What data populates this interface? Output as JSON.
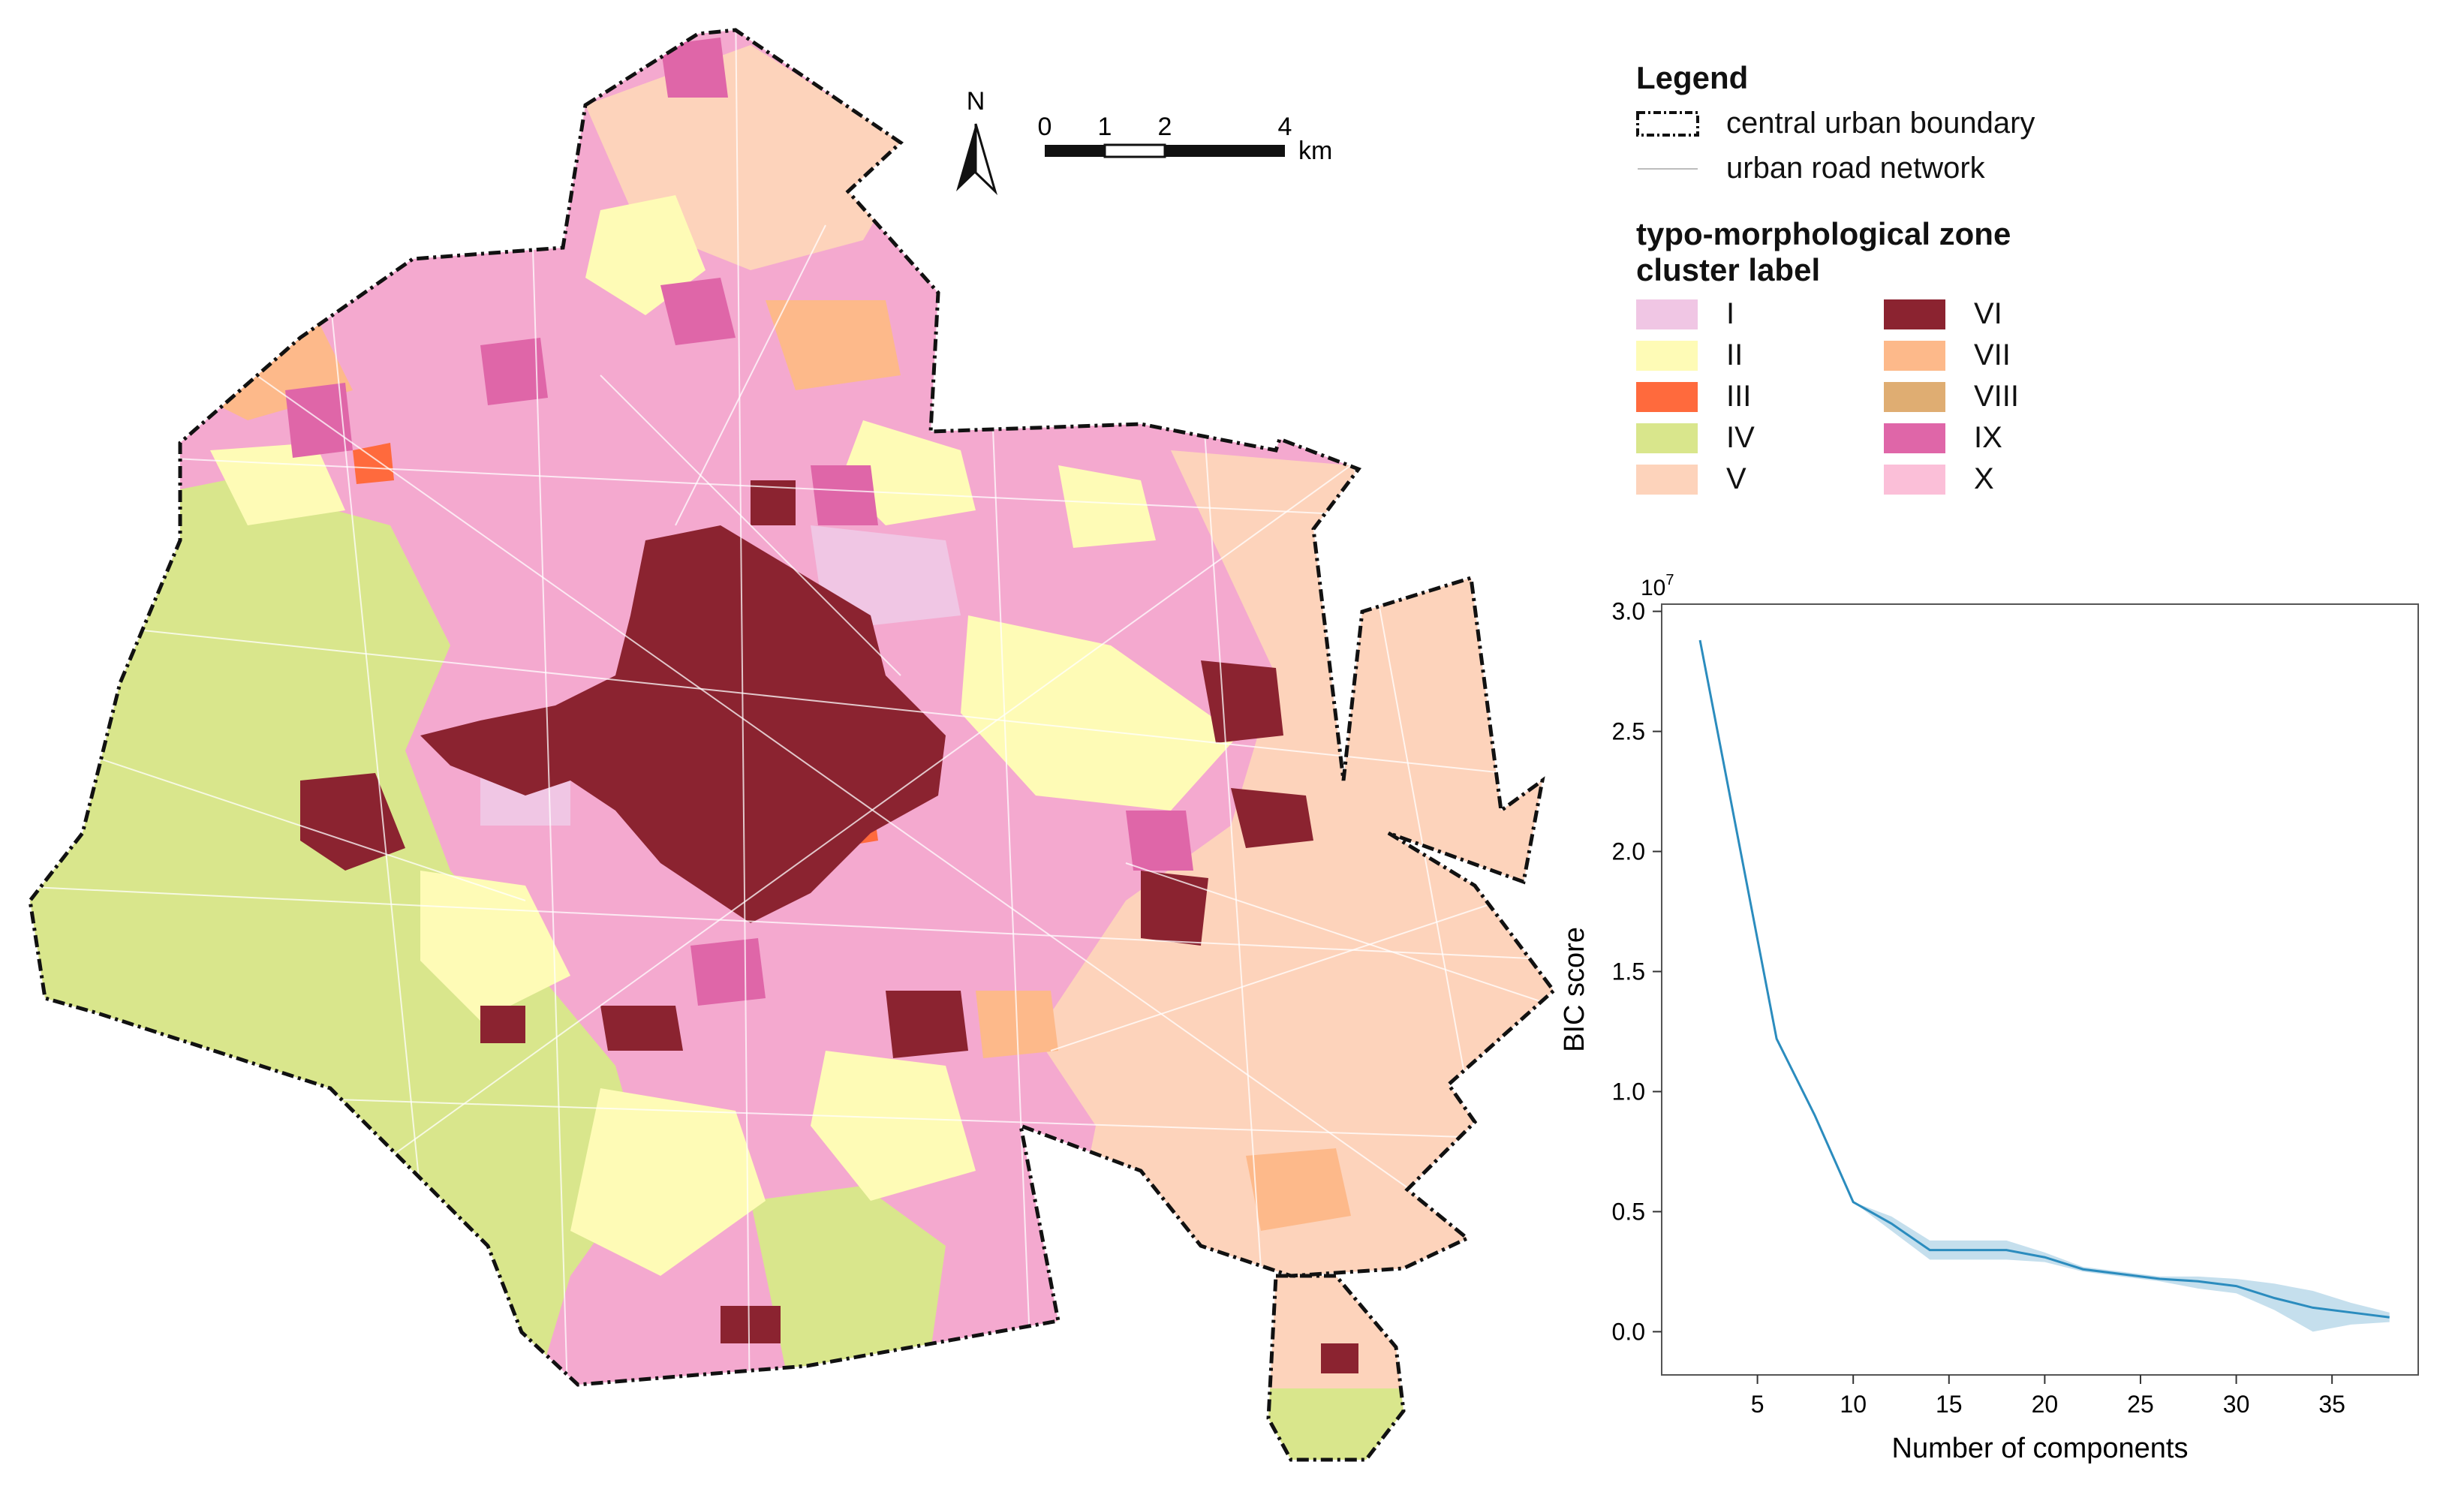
{
  "map": {
    "north_label": "N",
    "scale_ticks": [
      "0",
      "1",
      "2",
      "4"
    ],
    "scale_unit": "km"
  },
  "legend": {
    "title": "Legend",
    "boundary_label": "central urban boundary",
    "road_label": "urban road network",
    "cluster_title_line1": "typo-morphological zone",
    "cluster_title_line2": "cluster label",
    "clusters": [
      {
        "label": "I",
        "color": "#f0c6e4"
      },
      {
        "label": "II",
        "color": "#fefbb6"
      },
      {
        "label": "III",
        "color": "#ff6a3d"
      },
      {
        "label": "IV",
        "color": "#d9e68c"
      },
      {
        "label": "V",
        "color": "#fdd3bb"
      },
      {
        "label": "VI",
        "color": "#8b2330"
      },
      {
        "label": "VII",
        "color": "#fdb98a"
      },
      {
        "label": "VIII",
        "color": "#dfad72"
      },
      {
        "label": "IX",
        "color": "#df66a8"
      },
      {
        "label": "X",
        "color": "#fbbfd8"
      }
    ]
  },
  "chart_data": {
    "type": "line",
    "xlabel": "Number of components",
    "ylabel": "BIC score",
    "y_exponent": "10",
    "y_exponent_power": "7",
    "xlim": [
      0,
      39.5
    ],
    "ylim": [
      -0.18,
      3.03
    ],
    "xticks": [
      5,
      10,
      15,
      20,
      25,
      30,
      35
    ],
    "yticks": [
      0.0,
      0.5,
      1.0,
      1.5,
      2.0,
      2.5,
      3.0
    ],
    "ytick_labels": [
      "0.0",
      "0.5",
      "1.0",
      "1.5",
      "2.0",
      "2.5",
      "3.0"
    ],
    "line_color": "#2b8cbe",
    "band_color": "#9ecae1",
    "series": [
      {
        "x": [
          2,
          4,
          6,
          8,
          10,
          12,
          14,
          16,
          18,
          20,
          22,
          24,
          26,
          28,
          30,
          32,
          34,
          36,
          38
        ],
        "y": [
          2.88,
          2.05,
          1.22,
          0.9,
          0.54,
          0.45,
          0.34,
          0.34,
          0.34,
          0.31,
          0.26,
          0.24,
          0.22,
          0.21,
          0.19,
          0.14,
          0.1,
          0.08,
          0.06
        ],
        "lower": [
          2.88,
          2.05,
          1.22,
          0.9,
          0.54,
          0.42,
          0.3,
          0.3,
          0.3,
          0.29,
          0.25,
          0.23,
          0.21,
          0.18,
          0.16,
          0.09,
          0.0,
          0.03,
          0.04
        ],
        "upper": [
          2.88,
          2.05,
          1.22,
          0.9,
          0.54,
          0.48,
          0.38,
          0.38,
          0.38,
          0.33,
          0.27,
          0.25,
          0.23,
          0.23,
          0.22,
          0.2,
          0.17,
          0.12,
          0.08
        ]
      }
    ]
  }
}
